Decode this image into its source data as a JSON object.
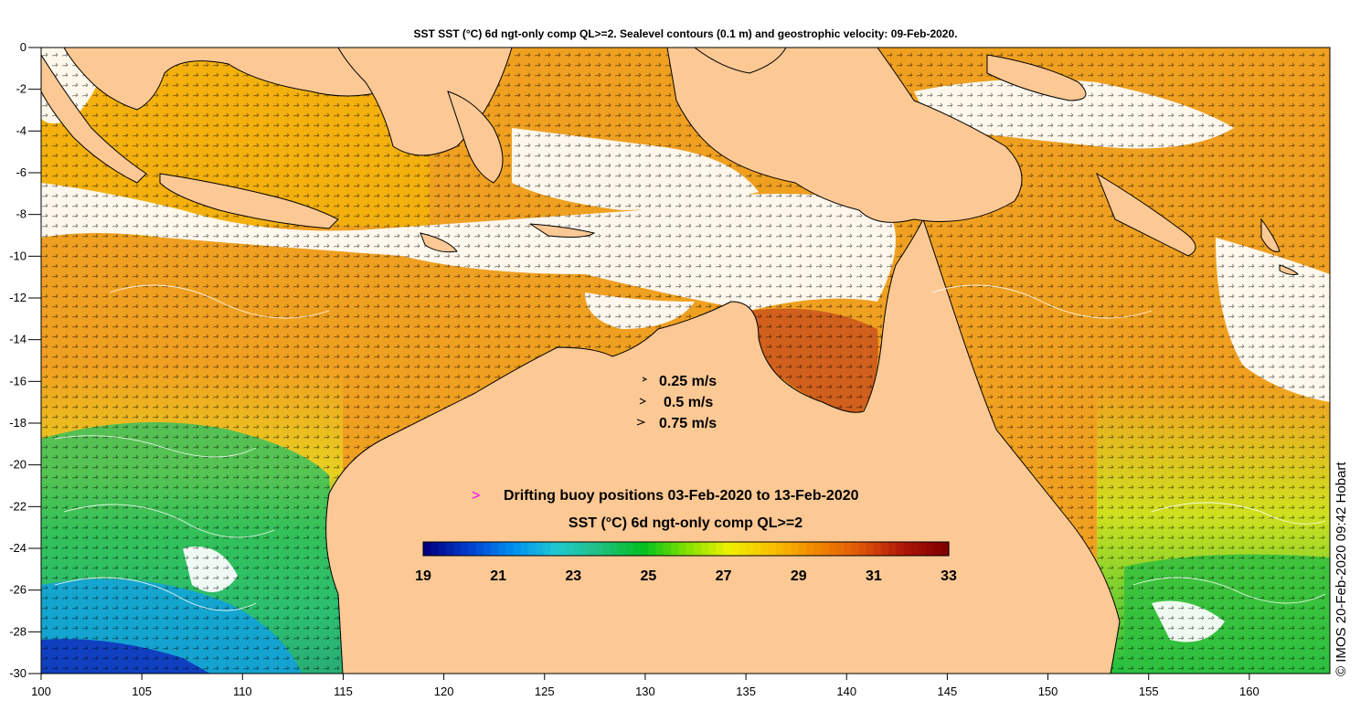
{
  "title": "SST SST (°C) 6d ngt-only comp QL>=2. Sealevel contours (0.1 m) and geostrophic velocity: 09-Feb-2020.",
  "colors": {
    "land": "#fcc894",
    "ocean_warm": "#f0a020",
    "ocean_hot": "#d8601c",
    "cloud": "#ffffff",
    "buoy": "#ff00ff",
    "axis": "#000000"
  },
  "map": {
    "x_axis": {
      "min": 100,
      "max": 164,
      "ticks": [
        "100",
        "105",
        "110",
        "115",
        "120",
        "125",
        "130",
        "135",
        "140",
        "145",
        "150",
        "155",
        "160"
      ]
    },
    "y_axis": {
      "min": -30,
      "max": 0,
      "ticks": [
        "0",
        "-2",
        "-4",
        "-6",
        "-8",
        "-10",
        "-12",
        "-14",
        "-16",
        "-18",
        "-20",
        "-22",
        "-24",
        "-26",
        "-28",
        "-30"
      ]
    }
  },
  "velocity_legend": [
    {
      "label": "0.25 m/s"
    },
    {
      "label": "0.5 m/s"
    },
    {
      "label": "0.75 m/s"
    }
  ],
  "buoy_legend": {
    "marker": ">",
    "label": "Drifting buoy positions 03-Feb-2020 to 13-Feb-2020"
  },
  "colorbar": {
    "title": "SST (°C) 6d ngt-only comp QL>=2",
    "min": 19,
    "max": 33,
    "tick_labels": [
      "19",
      "21",
      "23",
      "25",
      "27",
      "29",
      "31",
      "33"
    ],
    "stops": [
      "#000080",
      "#0040d0",
      "#0090f0",
      "#20c8d0",
      "#20c080",
      "#00c020",
      "#80e000",
      "#f0f000",
      "#f8c000",
      "#f08800",
      "#e05808",
      "#b01808",
      "#800000"
    ]
  },
  "credit": "© IMOS 20-Feb-2020 09:42 Hobart"
}
